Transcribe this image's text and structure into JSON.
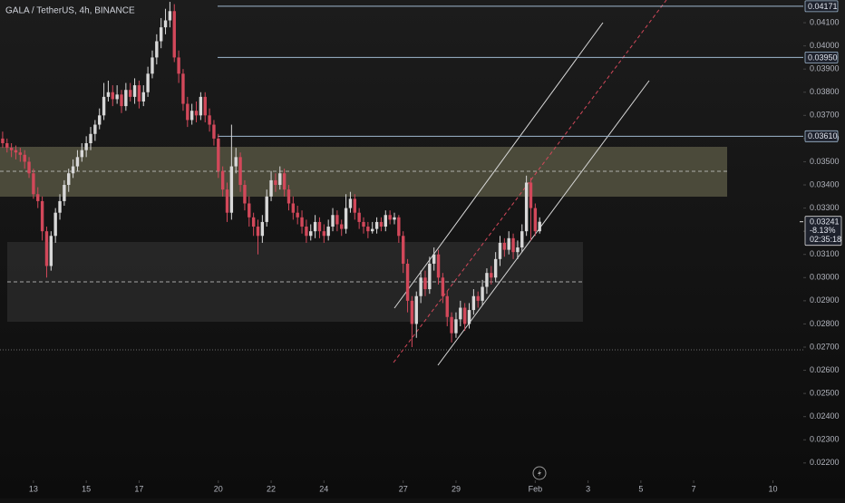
{
  "chart_data": {
    "type": "candlestick",
    "title": "GALA / TetherUS, 4h, BINANCE",
    "up_color": "#d8d8d8",
    "down_color": "#d2485a",
    "values": [
      [
        0.036,
        0.0363,
        0.0356,
        0.0358
      ],
      [
        0.0358,
        0.036,
        0.0354,
        0.0356
      ],
      [
        0.0356,
        0.0358,
        0.0352,
        0.0355
      ],
      [
        0.0355,
        0.0357,
        0.0351,
        0.0354
      ],
      [
        0.0354,
        0.0356,
        0.035,
        0.0353
      ],
      [
        0.0353,
        0.0355,
        0.0347,
        0.035
      ],
      [
        0.035,
        0.0352,
        0.0343,
        0.0345
      ],
      [
        0.0345,
        0.0347,
        0.0334,
        0.0336
      ],
      [
        0.0336,
        0.0339,
        0.033,
        0.0333
      ],
      [
        0.0333,
        0.0335,
        0.0316,
        0.032
      ],
      [
        0.032,
        0.0322,
        0.03,
        0.0305
      ],
      [
        0.0305,
        0.032,
        0.0303,
        0.0318
      ],
      [
        0.0318,
        0.033,
        0.0315,
        0.0328
      ],
      [
        0.0328,
        0.0336,
        0.0325,
        0.0333
      ],
      [
        0.0333,
        0.0342,
        0.0331,
        0.034
      ],
      [
        0.034,
        0.0347,
        0.0337,
        0.0345
      ],
      [
        0.0345,
        0.0351,
        0.0343,
        0.0348
      ],
      [
        0.0348,
        0.0355,
        0.0346,
        0.0352
      ],
      [
        0.0352,
        0.0358,
        0.035,
        0.0355
      ],
      [
        0.0355,
        0.0361,
        0.0352,
        0.0358
      ],
      [
        0.0358,
        0.0365,
        0.0355,
        0.0362
      ],
      [
        0.0362,
        0.0368,
        0.0359,
        0.0366
      ],
      [
        0.0366,
        0.0373,
        0.0364,
        0.037
      ],
      [
        0.037,
        0.0384,
        0.0368,
        0.0378
      ],
      [
        0.0378,
        0.0385,
        0.0376,
        0.038
      ],
      [
        0.038,
        0.0383,
        0.0374,
        0.0377
      ],
      [
        0.0377,
        0.0383,
        0.0375,
        0.0379
      ],
      [
        0.0379,
        0.0381,
        0.0371,
        0.0374
      ],
      [
        0.0374,
        0.0384,
        0.0372,
        0.0381
      ],
      [
        0.0381,
        0.0384,
        0.0376,
        0.0378
      ],
      [
        0.0378,
        0.0386,
        0.0375,
        0.0383
      ],
      [
        0.0383,
        0.0385,
        0.0373,
        0.0376
      ],
      [
        0.0376,
        0.0383,
        0.0374,
        0.038
      ],
      [
        0.038,
        0.0391,
        0.0378,
        0.0388
      ],
      [
        0.0388,
        0.0398,
        0.0386,
        0.0395
      ],
      [
        0.0395,
        0.0405,
        0.0392,
        0.0402
      ],
      [
        0.0402,
        0.0412,
        0.0399,
        0.0408
      ],
      [
        0.0408,
        0.0416,
        0.0405,
        0.0411
      ],
      [
        0.0411,
        0.0419,
        0.0408,
        0.0415
      ],
      [
        0.0415,
        0.0418,
        0.0393,
        0.0395
      ],
      [
        0.0395,
        0.0398,
        0.0384,
        0.0388
      ],
      [
        0.0388,
        0.039,
        0.0372,
        0.0375
      ],
      [
        0.0375,
        0.0378,
        0.0365,
        0.0368
      ],
      [
        0.0368,
        0.0375,
        0.0366,
        0.0372
      ],
      [
        0.0372,
        0.0376,
        0.0367,
        0.037
      ],
      [
        0.037,
        0.038,
        0.0368,
        0.0378
      ],
      [
        0.0378,
        0.038,
        0.0367,
        0.037
      ],
      [
        0.037,
        0.0373,
        0.0363,
        0.0366
      ],
      [
        0.0366,
        0.0368,
        0.0357,
        0.036
      ],
      [
        0.036,
        0.0362,
        0.0343,
        0.0346
      ],
      [
        0.0346,
        0.0348,
        0.0335,
        0.0338
      ],
      [
        0.0338,
        0.0341,
        0.0324,
        0.0328
      ],
      [
        0.0328,
        0.0366,
        0.0325,
        0.0348
      ],
      [
        0.0348,
        0.0356,
        0.0345,
        0.0352
      ],
      [
        0.0352,
        0.0354,
        0.0337,
        0.034
      ],
      [
        0.034,
        0.0342,
        0.0329,
        0.0332
      ],
      [
        0.0332,
        0.0335,
        0.0322,
        0.0326
      ],
      [
        0.0326,
        0.0328,
        0.0318,
        0.0322
      ],
      [
        0.0322,
        0.0325,
        0.031,
        0.0318
      ],
      [
        0.0318,
        0.0327,
        0.0315,
        0.0324
      ],
      [
        0.0324,
        0.0338,
        0.0322,
        0.0335
      ],
      [
        0.0335,
        0.0346,
        0.0333,
        0.0342
      ],
      [
        0.0342,
        0.0345,
        0.0337,
        0.034
      ],
      [
        0.034,
        0.0348,
        0.0338,
        0.0345
      ],
      [
        0.0345,
        0.0347,
        0.0335,
        0.0338
      ],
      [
        0.0338,
        0.034,
        0.0329,
        0.0332
      ],
      [
        0.0332,
        0.0335,
        0.0325,
        0.0328
      ],
      [
        0.0328,
        0.0331,
        0.0323,
        0.0326
      ],
      [
        0.0326,
        0.0329,
        0.0319,
        0.0322
      ],
      [
        0.0322,
        0.0325,
        0.0315,
        0.0318
      ],
      [
        0.0318,
        0.0323,
        0.0316,
        0.032
      ],
      [
        0.032,
        0.0327,
        0.0317,
        0.0324
      ],
      [
        0.0324,
        0.0326,
        0.0317,
        0.032
      ],
      [
        0.032,
        0.0323,
        0.0315,
        0.0318
      ],
      [
        0.0318,
        0.0325,
        0.0316,
        0.0322
      ],
      [
        0.0322,
        0.033,
        0.032,
        0.0327
      ],
      [
        0.0327,
        0.0329,
        0.032,
        0.0323
      ],
      [
        0.0323,
        0.0325,
        0.0318,
        0.0321
      ],
      [
        0.0321,
        0.0336,
        0.0319,
        0.033
      ],
      [
        0.033,
        0.0337,
        0.0328,
        0.0334
      ],
      [
        0.0334,
        0.0336,
        0.0325,
        0.0328
      ],
      [
        0.0328,
        0.033,
        0.0321,
        0.0324
      ],
      [
        0.0324,
        0.0326,
        0.0319,
        0.0322
      ],
      [
        0.0322,
        0.0324,
        0.0317,
        0.032
      ],
      [
        0.032,
        0.0324,
        0.0319,
        0.0321
      ],
      [
        0.0321,
        0.0326,
        0.0319,
        0.0324
      ],
      [
        0.0324,
        0.0326,
        0.032,
        0.0322
      ],
      [
        0.0322,
        0.0329,
        0.032,
        0.0327
      ],
      [
        0.0327,
        0.0329,
        0.0323,
        0.0325
      ],
      [
        0.0325,
        0.0328,
        0.0323,
        0.0326
      ],
      [
        0.0326,
        0.0327,
        0.0315,
        0.0318
      ],
      [
        0.0318,
        0.032,
        0.0302,
        0.0306
      ],
      [
        0.0306,
        0.0308,
        0.0285,
        0.029
      ],
      [
        0.029,
        0.0292,
        0.027,
        0.028
      ],
      [
        0.028,
        0.0294,
        0.0274,
        0.0292
      ],
      [
        0.0292,
        0.0303,
        0.0289,
        0.03
      ],
      [
        0.03,
        0.0303,
        0.0292,
        0.0295
      ],
      [
        0.0295,
        0.0309,
        0.0293,
        0.0306
      ],
      [
        0.0306,
        0.0313,
        0.0303,
        0.031
      ],
      [
        0.031,
        0.0312,
        0.0297,
        0.03
      ],
      [
        0.03,
        0.0302,
        0.0289,
        0.0292
      ],
      [
        0.0292,
        0.0294,
        0.0279,
        0.0283
      ],
      [
        0.0283,
        0.0285,
        0.0272,
        0.0276
      ],
      [
        0.0276,
        0.0285,
        0.0274,
        0.0282
      ],
      [
        0.0282,
        0.029,
        0.0279,
        0.0287
      ],
      [
        0.0287,
        0.0289,
        0.0277,
        0.028
      ],
      [
        0.028,
        0.0289,
        0.0278,
        0.0286
      ],
      [
        0.0286,
        0.0295,
        0.0284,
        0.0292
      ],
      [
        0.0292,
        0.0294,
        0.0287,
        0.029
      ],
      [
        0.029,
        0.0299,
        0.0288,
        0.0296
      ],
      [
        0.0296,
        0.0304,
        0.0293,
        0.0302
      ],
      [
        0.0302,
        0.0305,
        0.0297,
        0.03
      ],
      [
        0.03,
        0.0311,
        0.0298,
        0.0308
      ],
      [
        0.0308,
        0.0318,
        0.0305,
        0.0315
      ],
      [
        0.0315,
        0.0317,
        0.0309,
        0.0312
      ],
      [
        0.0312,
        0.032,
        0.031,
        0.0317
      ],
      [
        0.0317,
        0.0319,
        0.0308,
        0.0311
      ],
      [
        0.0311,
        0.0316,
        0.0308,
        0.0313
      ],
      [
        0.0313,
        0.0323,
        0.0311,
        0.032
      ],
      [
        0.032,
        0.0344,
        0.0318,
        0.0341
      ],
      [
        0.0341,
        0.0343,
        0.0316,
        0.033
      ],
      [
        0.033,
        0.0332,
        0.0318,
        0.032
      ],
      [
        0.032,
        0.0326,
        0.0319,
        0.03241
      ]
    ],
    "ylim": [
      0.02125,
      0.04198
    ],
    "yticks": [
      {
        "value": 0.041,
        "label": "0.04100"
      },
      {
        "value": 0.04,
        "label": "0.04000"
      },
      {
        "value": 0.039,
        "label": "0.03900"
      },
      {
        "value": 0.038,
        "label": "0.03800"
      },
      {
        "value": 0.037,
        "label": "0.03700"
      },
      {
        "value": 0.036,
        "label": "0.03600"
      },
      {
        "value": 0.035,
        "label": "0.03500"
      },
      {
        "value": 0.034,
        "label": "0.03400"
      },
      {
        "value": 0.033,
        "label": "0.03300"
      },
      {
        "value": 0.032,
        "label": "0.03200"
      },
      {
        "value": 0.031,
        "label": "0.03100"
      },
      {
        "value": 0.03,
        "label": "0.03000"
      },
      {
        "value": 0.029,
        "label": "0.02900"
      },
      {
        "value": 0.028,
        "label": "0.02800"
      },
      {
        "value": 0.027,
        "label": "0.02700"
      },
      {
        "value": 0.026,
        "label": "0.02600"
      },
      {
        "value": 0.025,
        "label": "0.02500"
      },
      {
        "value": 0.024,
        "label": "0.02400"
      },
      {
        "value": 0.023,
        "label": "0.02300"
      },
      {
        "value": 0.022,
        "label": "0.02200"
      }
    ],
    "xlim": [
      -0.6,
      181.9
    ],
    "xticks": [
      {
        "value": 7,
        "label": "13"
      },
      {
        "value": 19,
        "label": "15"
      },
      {
        "value": 31,
        "label": "17"
      },
      {
        "value": 49,
        "label": "20"
      },
      {
        "value": 61,
        "label": "22"
      },
      {
        "value": 73,
        "label": "24"
      },
      {
        "value": 91,
        "label": "27"
      },
      {
        "value": 103,
        "label": "29"
      },
      {
        "value": 121,
        "label": "Feb"
      },
      {
        "value": 133,
        "label": "3"
      },
      {
        "value": 145,
        "label": "5"
      },
      {
        "value": 157,
        "label": "7"
      },
      {
        "value": 175,
        "label": "10"
      }
    ],
    "price_lines": [
      {
        "value": 0.04171,
        "label": "0.04171"
      },
      {
        "value": 0.0395,
        "label": "0.03950"
      },
      {
        "value": 0.0361,
        "label": "0.03610"
      }
    ],
    "last_price": {
      "value": 0.03241,
      "label": "0.03241"
    },
    "change": "-8.13%",
    "countdown": "02:35:18"
  }
}
